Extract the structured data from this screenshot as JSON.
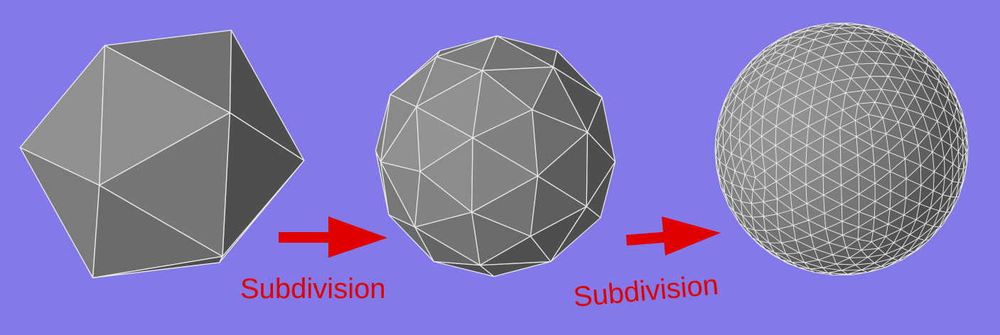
{
  "colors": {
    "background": "#8479e8",
    "face_base": "#7c7c7c",
    "edge": "#e8e8e8",
    "arrow": "#e00000",
    "label": "#e00000"
  },
  "stages": [
    {
      "name": "icosahedron",
      "subdivision_level": 0
    },
    {
      "name": "subdivided-once",
      "subdivision_level": 1
    },
    {
      "name": "subdivided-sphere",
      "subdivision_level": 3
    }
  ],
  "arrows": [
    {
      "label": "Subdivision"
    },
    {
      "label": "Subdivision"
    }
  ]
}
